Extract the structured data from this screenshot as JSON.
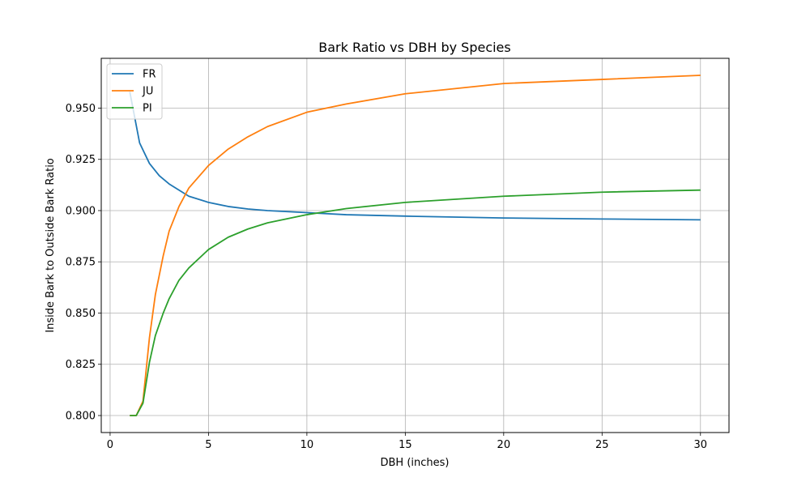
{
  "chart_data": {
    "type": "line",
    "title": "Bark Ratio vs DBH by Species",
    "xlabel": "DBH (inches)",
    "ylabel": "Inside Bark to Outside Bark Ratio",
    "xlim": [
      -0.45,
      31.45
    ],
    "ylim": [
      0.7917,
      0.9743
    ],
    "xticks": [
      0,
      5,
      10,
      15,
      20,
      25,
      30
    ],
    "yticks": [
      0.8,
      0.825,
      0.85,
      0.875,
      0.9,
      0.925,
      0.95
    ],
    "ytick_labels": [
      "0.800",
      "0.825",
      "0.850",
      "0.875",
      "0.900",
      "0.925",
      "0.950"
    ],
    "grid": true,
    "legend_position": "top-left",
    "series": [
      {
        "name": "FR",
        "color": "#1f77b4",
        "x": [
          1.0,
          1.5,
          2.0,
          2.5,
          3.0,
          4.0,
          5.0,
          6.0,
          7.0,
          8.0,
          10.0,
          12.0,
          15.0,
          20.0,
          25.0,
          30.0
        ],
        "y": [
          0.958,
          0.933,
          0.923,
          0.917,
          0.913,
          0.907,
          0.904,
          0.902,
          0.9008,
          0.9,
          0.899,
          0.898,
          0.8973,
          0.8964,
          0.8959,
          0.8955
        ]
      },
      {
        "name": "JU",
        "color": "#ff7f0e",
        "x": [
          1.0,
          1.33,
          1.67,
          2.0,
          2.3,
          2.7,
          3.0,
          3.5,
          4.0,
          5.0,
          6.0,
          7.0,
          8.0,
          10.0,
          12.0,
          15.0,
          20.0,
          25.0,
          30.0
        ],
        "y": [
          0.8,
          0.8,
          0.807,
          0.838,
          0.859,
          0.878,
          0.89,
          0.902,
          0.911,
          0.922,
          0.93,
          0.936,
          0.941,
          0.948,
          0.952,
          0.957,
          0.962,
          0.964,
          0.966
        ]
      },
      {
        "name": "PI",
        "color": "#2ca02c",
        "x": [
          1.0,
          1.33,
          1.67,
          2.0,
          2.3,
          2.7,
          3.0,
          3.5,
          4.0,
          5.0,
          6.0,
          7.0,
          8.0,
          10.0,
          12.0,
          15.0,
          20.0,
          25.0,
          30.0
        ],
        "y": [
          0.8,
          0.8,
          0.806,
          0.826,
          0.839,
          0.85,
          0.857,
          0.866,
          0.872,
          0.881,
          0.887,
          0.891,
          0.894,
          0.898,
          0.901,
          0.904,
          0.907,
          0.909,
          0.91
        ]
      }
    ]
  }
}
